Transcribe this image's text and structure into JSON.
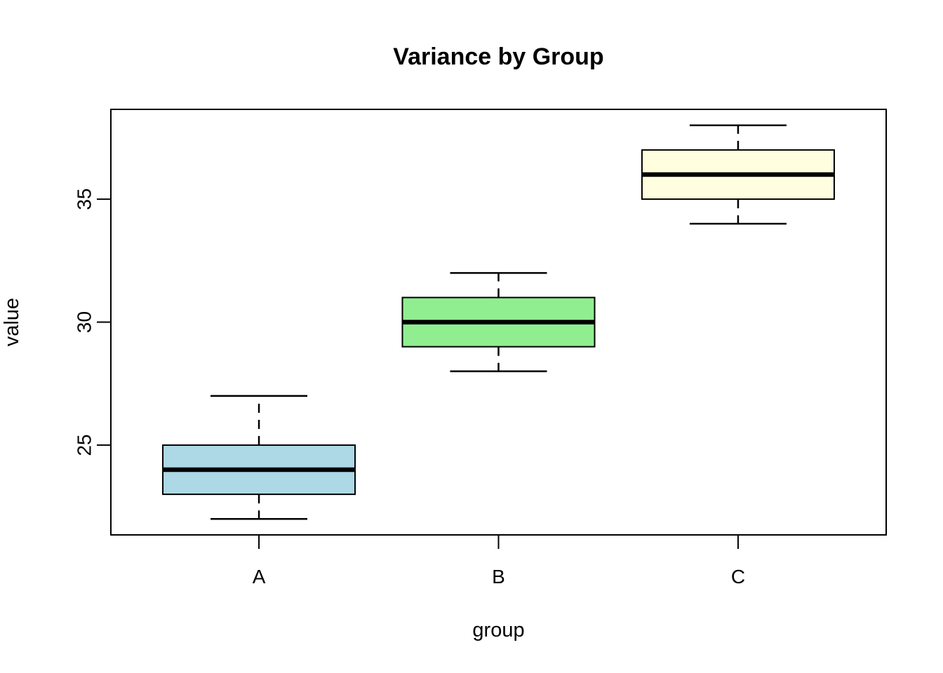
{
  "figure": {
    "background": "#FFFFFF",
    "frame_color": "#000000",
    "text_color": "#000000"
  },
  "chart_data": {
    "type": "boxplot",
    "title": "Variance by Group",
    "xlabel": "group",
    "ylabel": "value",
    "categories": [
      "A",
      "B",
      "C"
    ],
    "series": [
      {
        "name": "A",
        "whisker_low": 22,
        "q1": 23,
        "median": 24,
        "q3": 25,
        "whisker_high": 27,
        "fill": "#ADD8E6"
      },
      {
        "name": "B",
        "whisker_low": 28,
        "q1": 29,
        "median": 30,
        "q3": 31,
        "whisker_high": 32,
        "fill": "#90EE90"
      },
      {
        "name": "C",
        "whisker_low": 34,
        "q1": 35,
        "median": 36,
        "q3": 37,
        "whisker_high": 38,
        "fill": "#FFFFE0"
      }
    ],
    "yticks": [
      "25",
      "30",
      "35"
    ],
    "ylim": [
      21.35,
      38.65
    ],
    "grid": false,
    "legend_position": "none",
    "outliers": []
  }
}
